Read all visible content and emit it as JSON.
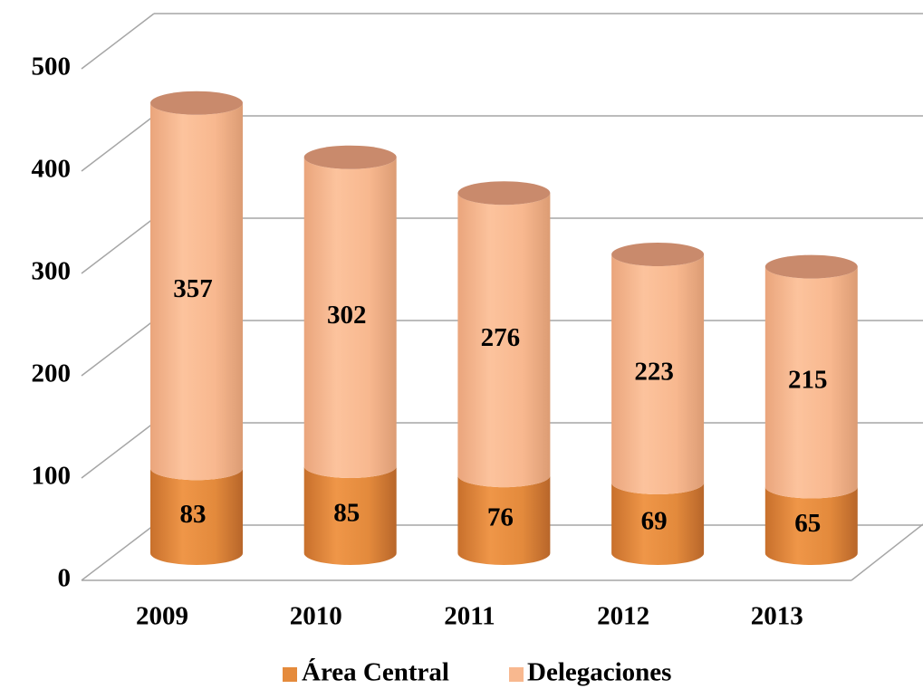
{
  "chart_data": {
    "type": "bar",
    "stacked": true,
    "categories": [
      "2009",
      "2010",
      "2011",
      "2012",
      "2013"
    ],
    "series": [
      {
        "name": "Área Central",
        "color": "#e58b3c",
        "values": [
          83,
          85,
          76,
          69,
          65
        ]
      },
      {
        "name": "Delegaciones",
        "color": "#f8b88f",
        "values": [
          357,
          302,
          276,
          223,
          215
        ]
      }
    ],
    "ylim": [
      0,
      500
    ],
    "yticks": [
      0,
      100,
      200,
      300,
      400,
      500
    ],
    "grid": true,
    "legend": "bottom"
  }
}
